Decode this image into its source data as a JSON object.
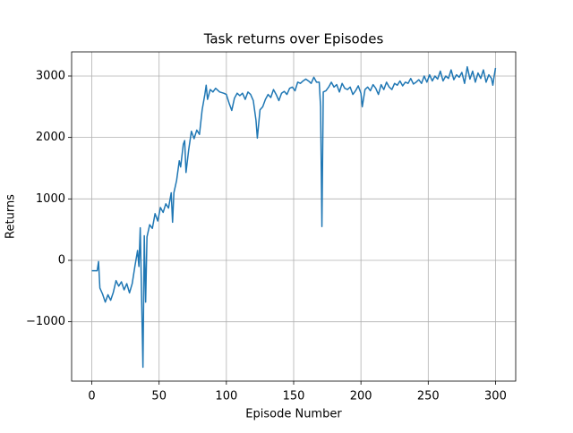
{
  "chart_data": {
    "type": "line",
    "title": "Task returns over Episodes",
    "x_label": "Episode Number",
    "y_label": "Returns",
    "x": [
      0,
      2,
      4,
      5,
      6,
      8,
      10,
      12,
      14,
      16,
      18,
      20,
      22,
      24,
      26,
      28,
      30,
      32,
      34,
      35,
      36,
      37,
      38,
      39,
      40,
      41,
      43,
      45,
      47,
      49,
      51,
      53,
      55,
      57,
      59,
      60,
      61,
      63,
      65,
      66,
      68,
      69,
      70,
      72,
      74,
      76,
      78,
      80,
      82,
      84,
      85,
      86,
      88,
      90,
      92,
      95,
      98,
      100,
      102,
      104,
      106,
      108,
      110,
      112,
      114,
      116,
      118,
      120,
      122,
      123,
      125,
      127,
      129,
      131,
      133,
      135,
      137,
      139,
      141,
      143,
      145,
      147,
      149,
      151,
      153,
      155,
      157,
      159,
      161,
      163,
      165,
      167,
      169,
      170,
      171,
      172,
      174,
      176,
      178,
      180,
      182,
      184,
      186,
      188,
      190,
      192,
      194,
      196,
      198,
      200,
      201,
      203,
      205,
      207,
      209,
      211,
      213,
      215,
      217,
      219,
      221,
      223,
      225,
      227,
      229,
      231,
      233,
      235,
      237,
      239,
      241,
      243,
      245,
      247,
      249,
      251,
      253,
      255,
      257,
      259,
      261,
      263,
      265,
      267,
      269,
      271,
      273,
      275,
      277,
      279,
      281,
      283,
      285,
      287,
      289,
      291,
      293,
      295,
      297,
      298,
      299,
      300
    ],
    "values": [
      -170,
      -170,
      -170,
      -20,
      -450,
      -550,
      -680,
      -560,
      -650,
      -520,
      -330,
      -420,
      -350,
      -480,
      -380,
      -530,
      -380,
      -100,
      160,
      -100,
      530,
      -600,
      -1740,
      400,
      -680,
      380,
      580,
      520,
      760,
      640,
      860,
      780,
      920,
      850,
      1100,
      620,
      1100,
      1300,
      1620,
      1520,
      1890,
      1950,
      1430,
      1800,
      2100,
      1980,
      2120,
      2050,
      2450,
      2700,
      2850,
      2620,
      2780,
      2740,
      2800,
      2740,
      2720,
      2700,
      2560,
      2440,
      2640,
      2720,
      2680,
      2720,
      2620,
      2740,
      2700,
      2600,
      2280,
      1990,
      2450,
      2500,
      2620,
      2700,
      2650,
      2780,
      2700,
      2600,
      2720,
      2750,
      2700,
      2800,
      2820,
      2760,
      2900,
      2880,
      2920,
      2950,
      2920,
      2880,
      2980,
      2900,
      2900,
      2500,
      550,
      2740,
      2760,
      2820,
      2900,
      2820,
      2860,
      2740,
      2880,
      2800,
      2780,
      2820,
      2700,
      2760,
      2840,
      2720,
      2500,
      2780,
      2820,
      2760,
      2860,
      2800,
      2700,
      2860,
      2780,
      2900,
      2820,
      2780,
      2880,
      2850,
      2920,
      2840,
      2900,
      2880,
      2960,
      2870,
      2900,
      2940,
      2880,
      3000,
      2900,
      3020,
      2920,
      3000,
      2950,
      3080,
      2920,
      3000,
      2960,
      3100,
      2940,
      3020,
      2980,
      3060,
      2880,
      3150,
      2950,
      3080,
      2900,
      3050,
      2960,
      3100,
      2900,
      3020,
      2960,
      2850,
      3000,
      3130
    ],
    "color": "#1f77b4",
    "xlim": [
      -15,
      315
    ],
    "ylim": [
      -1966,
      3393
    ],
    "xticks": [
      0,
      50,
      100,
      150,
      200,
      250,
      300
    ],
    "yticks": [
      {
        "value": -1000,
        "label": "−1000"
      },
      0,
      1000,
      2000,
      3000
    ],
    "grid": true
  }
}
